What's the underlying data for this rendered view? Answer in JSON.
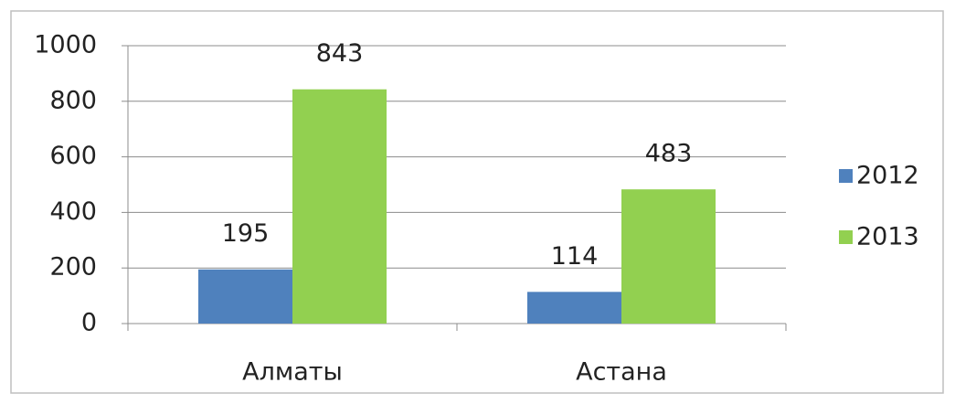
{
  "chart_data": {
    "type": "bar",
    "categories": [
      "Алматы",
      "Астана"
    ],
    "series": [
      {
        "name": "2012",
        "color": "#4f81bd",
        "values": [
          195,
          114
        ]
      },
      {
        "name": "2013",
        "color": "#92d050",
        "values": [
          843,
          483
        ]
      }
    ],
    "ylim": [
      0,
      1000
    ],
    "yticks": [
      0,
      200,
      400,
      600,
      800,
      1000
    ],
    "grid": true,
    "legend": "right"
  }
}
